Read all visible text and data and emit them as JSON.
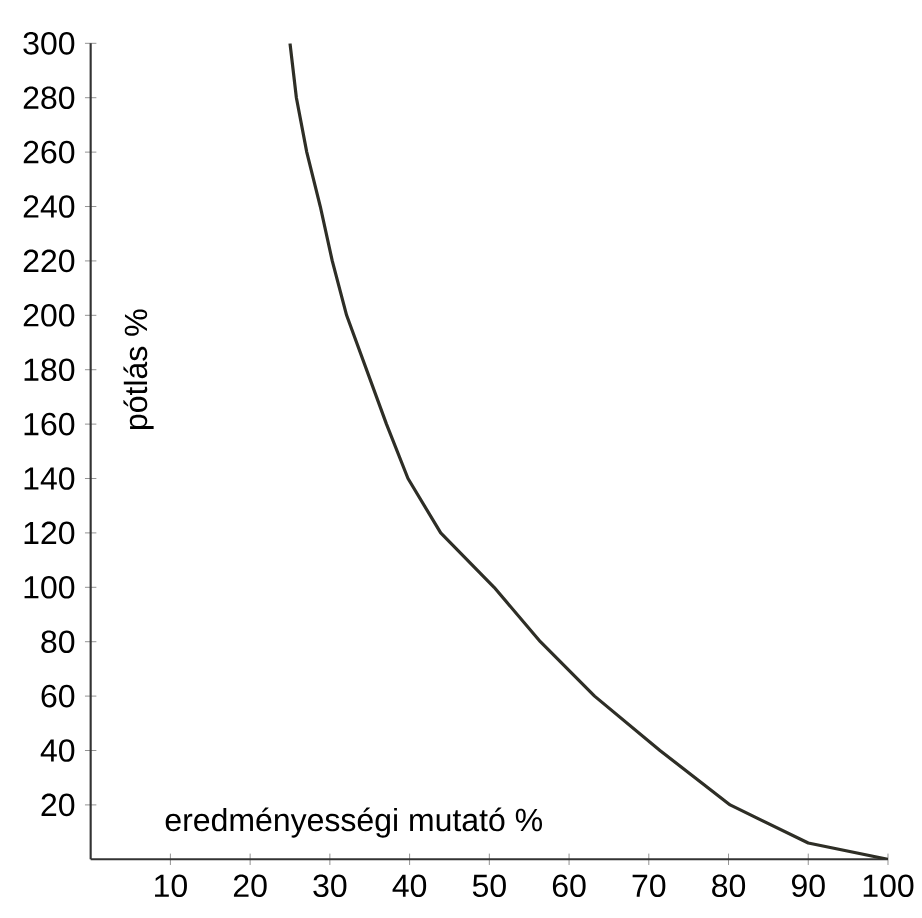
{
  "chart_data": {
    "type": "line",
    "xlabel": "eredményességi mutató %",
    "ylabel": "pótlás %",
    "x": [
      25,
      25.8,
      27.1,
      28.8,
      30.3,
      32.1,
      34.6,
      37.1,
      39.8,
      43.9,
      50.6,
      56.4,
      63.2,
      71.4,
      80.2,
      90,
      100
    ],
    "series": [
      {
        "color": "#2e2e26",
        "values": [
          300,
          280,
          260,
          240,
          220,
          200,
          180,
          160,
          140,
          120,
          100,
          80,
          60,
          40,
          20,
          6,
          0
        ]
      }
    ],
    "xlim": [
      0,
      100
    ],
    "ylim": [
      0,
      300
    ],
    "xticks": [
      10,
      20,
      30,
      40,
      50,
      60,
      70,
      80,
      90,
      100
    ],
    "yticks": [
      20,
      40,
      60,
      80,
      100,
      120,
      140,
      160,
      180,
      200,
      220,
      240,
      260,
      280,
      300
    ],
    "marker": "none",
    "line_style": "solid"
  }
}
